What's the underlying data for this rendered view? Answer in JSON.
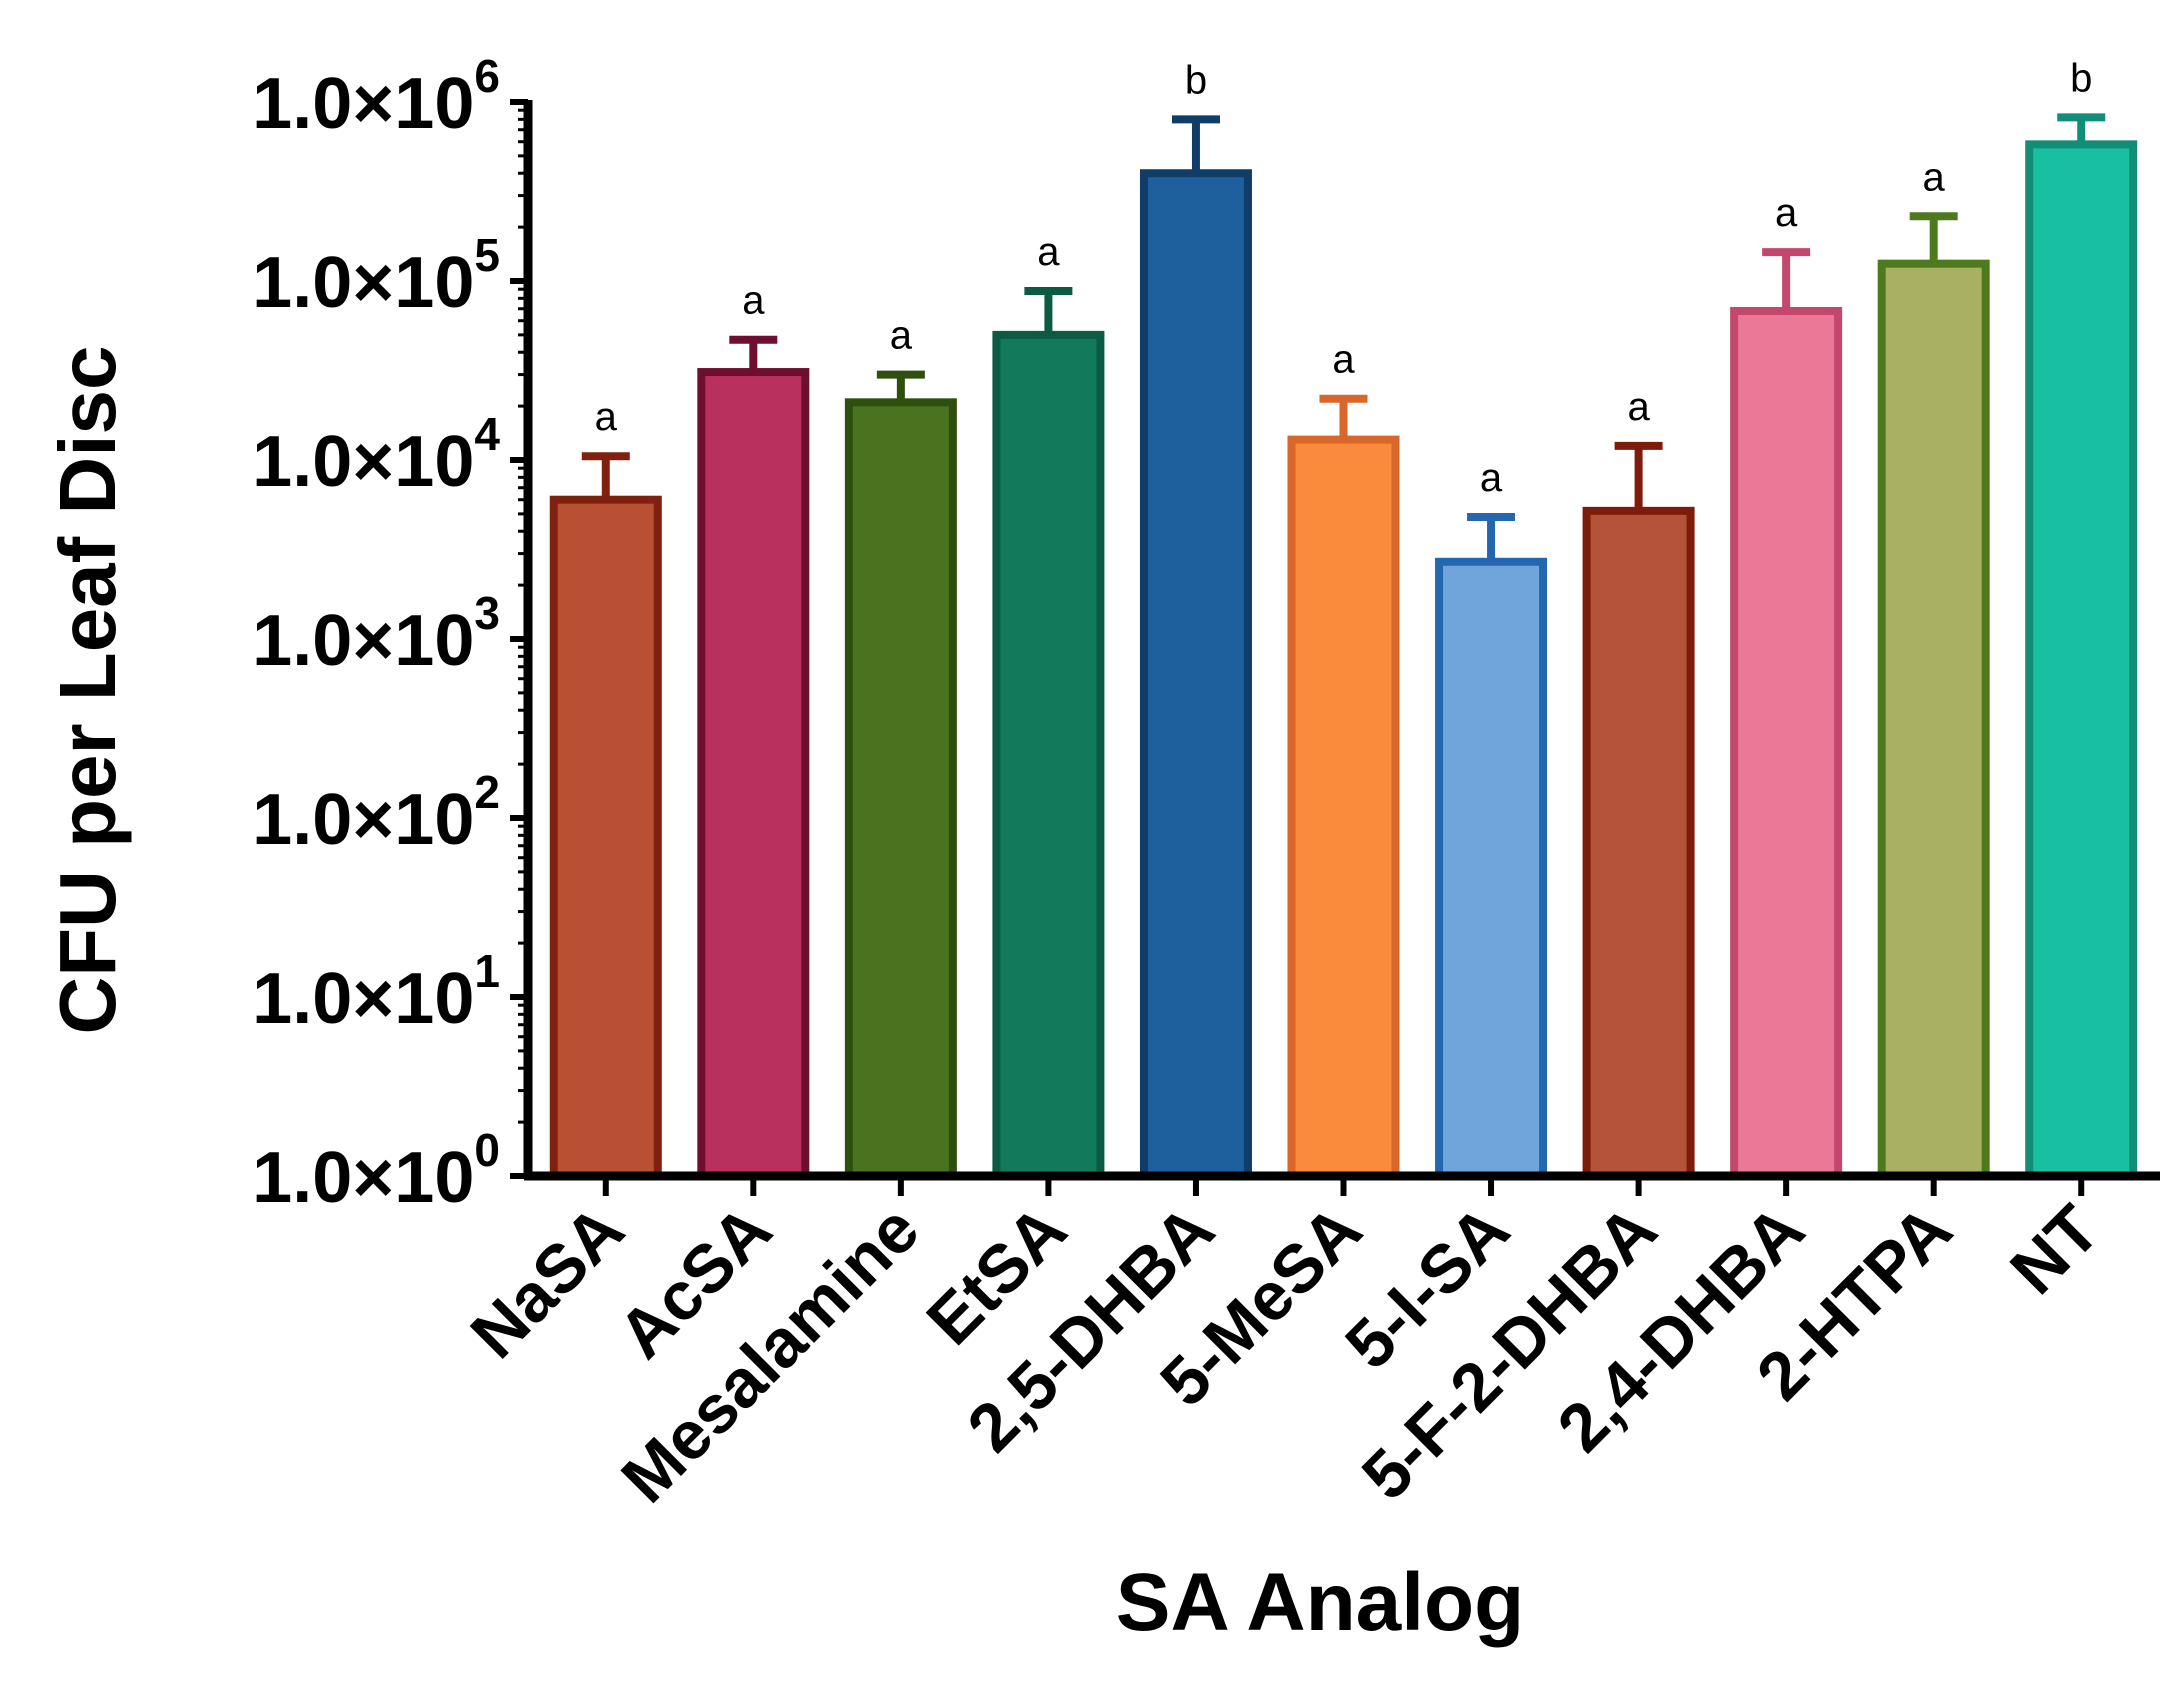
{
  "chart_data": {
    "type": "bar",
    "xlabel": "SA Analog",
    "ylabel": "CFU per Leaf Disc",
    "y_scale": "log",
    "ylim": [
      1,
      1000000
    ],
    "y_ticks": [
      {
        "value": 1,
        "label_base": "1.0×10",
        "label_exp": "0"
      },
      {
        "value": 10,
        "label_base": "1.0×10",
        "label_exp": "1"
      },
      {
        "value": 100,
        "label_base": "1.0×10",
        "label_exp": "2"
      },
      {
        "value": 1000,
        "label_base": "1.0×10",
        "label_exp": "3"
      },
      {
        "value": 10000,
        "label_base": "1.0×10",
        "label_exp": "4"
      },
      {
        "value": 100000,
        "label_base": "1.0×10",
        "label_exp": "5"
      },
      {
        "value": 1000000,
        "label_base": "1.0×10",
        "label_exp": "6"
      }
    ],
    "categories": [
      "NaSA",
      "AcSA",
      "Mesalamine",
      "EtSA",
      "2,5-DHBA",
      "5-MeSA",
      "5-I-SA",
      "5-F-2-DHBA",
      "2,4-DHBA",
      "2-HTPA",
      "NT"
    ],
    "values": [
      6000,
      31000,
      21000,
      50000,
      400000,
      13000,
      2700,
      5200,
      68000,
      125000,
      580000
    ],
    "error_upper": [
      10500,
      47000,
      30000,
      88000,
      800000,
      22000,
      4800,
      12000,
      145000,
      230000,
      820000
    ],
    "significance_letters": [
      "a",
      "a",
      "a",
      "a",
      "b",
      "a",
      "a",
      "a",
      "a",
      "a",
      "b"
    ],
    "fill_colors": [
      "#B95034",
      "#B9305F",
      "#4A7320",
      "#117A5B",
      "#1E5F9D",
      "#FB8B3C",
      "#6FA5DB",
      "#B5533A",
      "#EB7897",
      "#A9AF63",
      "#19BFA1"
    ],
    "stroke_colors": [
      "#80200F",
      "#6E0F30",
      "#2E4F0E",
      "#0B5A42",
      "#103C68",
      "#D9662A",
      "#2467AE",
      "#7F1B0A",
      "#C3476F",
      "#4E7A1E",
      "#128E76"
    ],
    "grid": false,
    "legend": "none"
  }
}
